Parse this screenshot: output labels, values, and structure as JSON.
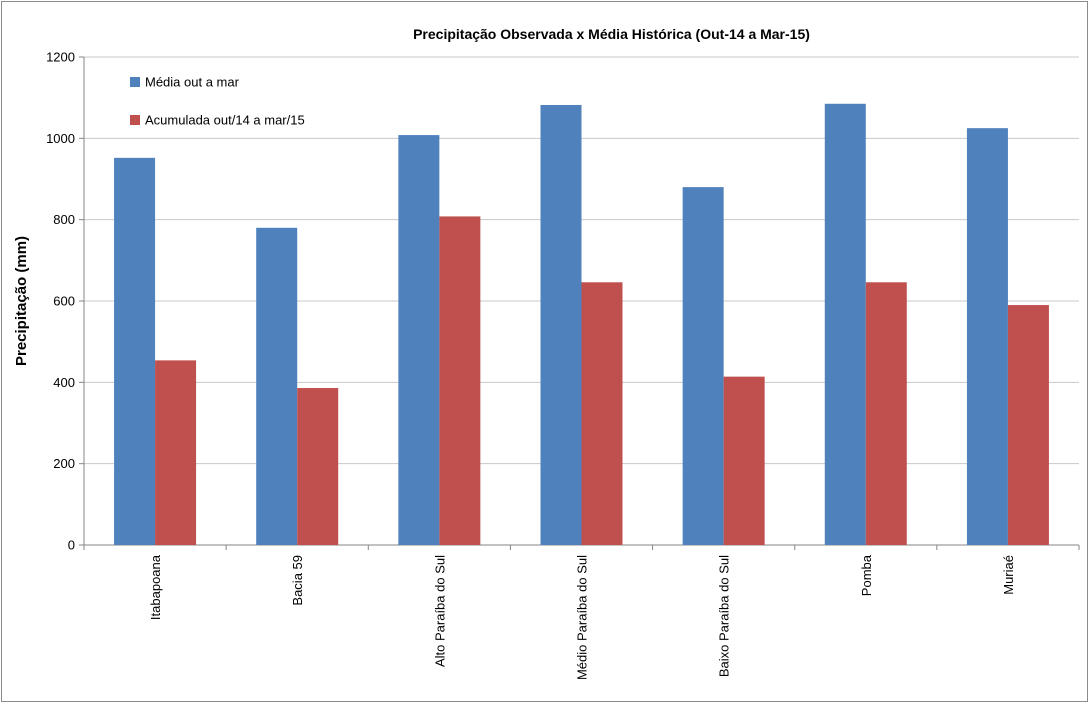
{
  "chart_data": {
    "type": "bar",
    "title": "Precipitação Observada x Média Histórica (Out-14 a Mar-15)",
    "xlabel": "",
    "ylabel": "Precipitação (mm)",
    "ylim": [
      0,
      1200
    ],
    "yticks": [
      0,
      200,
      400,
      600,
      800,
      1000,
      1200
    ],
    "grid": true,
    "legend_position": "top-left",
    "categories": [
      "Itabapoana",
      "Bacia 59",
      "Alto Paraíba do Sul",
      "Médio Paraíba do Sul",
      "Baixo Paraíba do Sul",
      "Pomba",
      "Muriaé"
    ],
    "series": [
      {
        "name": "Média out a mar",
        "color": "#4f81bd",
        "values": [
          952,
          780,
          1008,
          1082,
          880,
          1085,
          1025
        ]
      },
      {
        "name": "Acumulada out/14 a mar/15",
        "color": "#c0504d",
        "values": [
          454,
          386,
          808,
          646,
          414,
          646,
          590
        ]
      }
    ]
  }
}
